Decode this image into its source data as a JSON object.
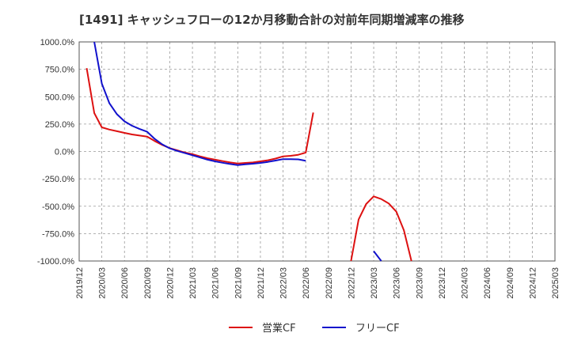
{
  "chart_data": {
    "type": "line",
    "title": "[1491]  キャッシュフローの12か月移動合計の対前年同期増減率の推移",
    "xlabel": "",
    "ylabel": "",
    "ylim": [
      -1000,
      1000
    ],
    "yticks": [
      1000,
      750,
      500,
      250,
      0,
      -250,
      -500,
      -750,
      -1000
    ],
    "ytick_labels": [
      "1000.0%",
      "750.0%",
      "500.0%",
      "250.0%",
      "0.0%",
      "-250.0%",
      "-500.0%",
      "-750.0%",
      "-1000.0%"
    ],
    "xticks": [
      "2019/12",
      "2020/03",
      "2020/06",
      "2020/09",
      "2020/12",
      "2021/03",
      "2021/06",
      "2021/09",
      "2021/12",
      "2022/03",
      "2022/06",
      "2022/09",
      "2022/12",
      "2023/03",
      "2023/06",
      "2023/09",
      "2023/12",
      "2024/03",
      "2024/06",
      "2024/09",
      "2024/12",
      "2025/03"
    ],
    "grid": true,
    "series": [
      {
        "name": "営業CF",
        "color": "#dd1111",
        "points": [
          [
            "2020/01",
            760
          ],
          [
            "2020/02",
            350
          ],
          [
            "2020/03",
            220
          ],
          [
            "2020/04",
            200
          ],
          [
            "2020/05",
            185
          ],
          [
            "2020/06",
            170
          ],
          [
            "2020/07",
            155
          ],
          [
            "2020/08",
            145
          ],
          [
            "2020/09",
            135
          ],
          [
            "2020/10",
            95
          ],
          [
            "2020/11",
            60
          ],
          [
            "2020/12",
            30
          ],
          [
            "2021/01",
            10
          ],
          [
            "2021/02",
            -10
          ],
          [
            "2021/03",
            -25
          ],
          [
            "2021/04",
            -45
          ],
          [
            "2021/05",
            -62
          ],
          [
            "2021/06",
            -75
          ],
          [
            "2021/07",
            -88
          ],
          [
            "2021/08",
            -100
          ],
          [
            "2021/09",
            -110
          ],
          [
            "2021/10",
            -105
          ],
          [
            "2021/11",
            -100
          ],
          [
            "2021/12",
            -90
          ],
          [
            "2022/01",
            -80
          ],
          [
            "2022/02",
            -65
          ],
          [
            "2022/03",
            -45
          ],
          [
            "2022/04",
            -40
          ],
          [
            "2022/05",
            -30
          ],
          [
            "2022/06",
            -10
          ],
          [
            "2022/07",
            355
          ],
          null,
          [
            "2022/12",
            -1000
          ],
          [
            "2023/01",
            -620
          ],
          [
            "2023/02",
            -480
          ],
          [
            "2023/03",
            -410
          ],
          [
            "2023/04",
            -435
          ],
          [
            "2023/05",
            -475
          ],
          [
            "2023/06",
            -550
          ],
          [
            "2023/07",
            -720
          ],
          [
            "2023/08",
            -1000
          ]
        ]
      },
      {
        "name": "フリーCF",
        "color": "#1111cc",
        "points": [
          [
            "2020/02",
            1000
          ],
          [
            "2020/03",
            620
          ],
          [
            "2020/04",
            440
          ],
          [
            "2020/05",
            340
          ],
          [
            "2020/06",
            275
          ],
          [
            "2020/07",
            235
          ],
          [
            "2020/08",
            205
          ],
          [
            "2020/09",
            180
          ],
          [
            "2020/10",
            115
          ],
          [
            "2020/11",
            65
          ],
          [
            "2020/12",
            28
          ],
          [
            "2021/01",
            5
          ],
          [
            "2021/02",
            -15
          ],
          [
            "2021/03",
            -35
          ],
          [
            "2021/04",
            -55
          ],
          [
            "2021/05",
            -75
          ],
          [
            "2021/06",
            -90
          ],
          [
            "2021/07",
            -103
          ],
          [
            "2021/08",
            -115
          ],
          [
            "2021/09",
            -125
          ],
          [
            "2021/10",
            -118
          ],
          [
            "2021/11",
            -112
          ],
          [
            "2021/12",
            -105
          ],
          [
            "2022/01",
            -95
          ],
          [
            "2022/02",
            -83
          ],
          [
            "2022/03",
            -70
          ],
          [
            "2022/04",
            -70
          ],
          [
            "2022/05",
            -72
          ],
          [
            "2022/06",
            -85
          ],
          null,
          [
            "2023/03",
            -910
          ],
          [
            "2023/04",
            -1000
          ]
        ]
      }
    ]
  }
}
